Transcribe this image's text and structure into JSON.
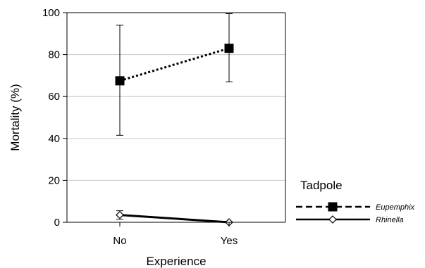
{
  "chart_data": {
    "type": "line",
    "xlabel": "Experience",
    "ylabel": "Mortality (%)",
    "categories": [
      "No",
      "Yes"
    ],
    "ylim": [
      0,
      100
    ],
    "yticks": [
      "0",
      "20",
      "40",
      "60",
      "80",
      "100"
    ],
    "grid": true,
    "legend_title": "Tadpole",
    "legend_placement": "right",
    "series": [
      {
        "name": "Eupemphix",
        "values": [
          67.5,
          83
        ],
        "err_low": [
          41.5,
          67
        ],
        "err_high": [
          94,
          99.5
        ],
        "marker": "filled-square",
        "line_style": "dotted",
        "color": "#000000"
      },
      {
        "name": "Rhinella",
        "values": [
          3.5,
          0
        ],
        "err_low": [
          1.5,
          0
        ],
        "err_high": [
          5.5,
          0
        ],
        "marker": "open-diamond",
        "line_style": "solid",
        "color": "#000000"
      }
    ]
  }
}
